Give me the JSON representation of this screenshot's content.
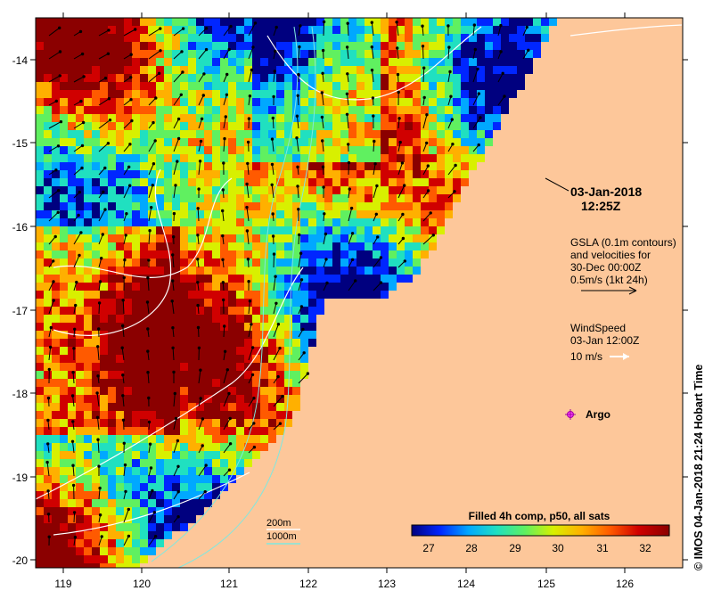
{
  "map": {
    "lon_ticks": [
      "119",
      "120",
      "121",
      "122",
      "123",
      "124",
      "125",
      "126"
    ],
    "lat_ticks": [
      "-14",
      "-15",
      "-16",
      "-17",
      "-18",
      "-19",
      "-20"
    ],
    "land_color": "#fdc79a",
    "frame_color": "#000000"
  },
  "annotations": {
    "date": "03-Jan-2018",
    "time": "12:25Z",
    "gsla_line1": "GSLA (0.1m contours)",
    "gsla_line2": "and velocities for",
    "gsla_line3": "30-Dec 00:00Z",
    "gsla_line4": "0.5m/s (1kt 24h)",
    "wind_line1": "WindSpeed",
    "wind_line2": "03-Jan 12:00Z",
    "wind_line3": "10 m/s",
    "argo_label": "Argo",
    "depth_200": "200m",
    "depth_1000": "1000m"
  },
  "colorbar": {
    "title": "Filled 4h comp, p50, all sats",
    "ticks": [
      "27",
      "28",
      "29",
      "30",
      "31",
      "32"
    ],
    "colors": [
      "#00007f",
      "#0026ff",
      "#00a8ff",
      "#20e0c0",
      "#60f060",
      "#d8f000",
      "#ffb000",
      "#ff5a00",
      "#d00000",
      "#8b0000"
    ]
  },
  "credit": "© IMOS 04-Jan-2018 21:24 Hobart Time"
}
